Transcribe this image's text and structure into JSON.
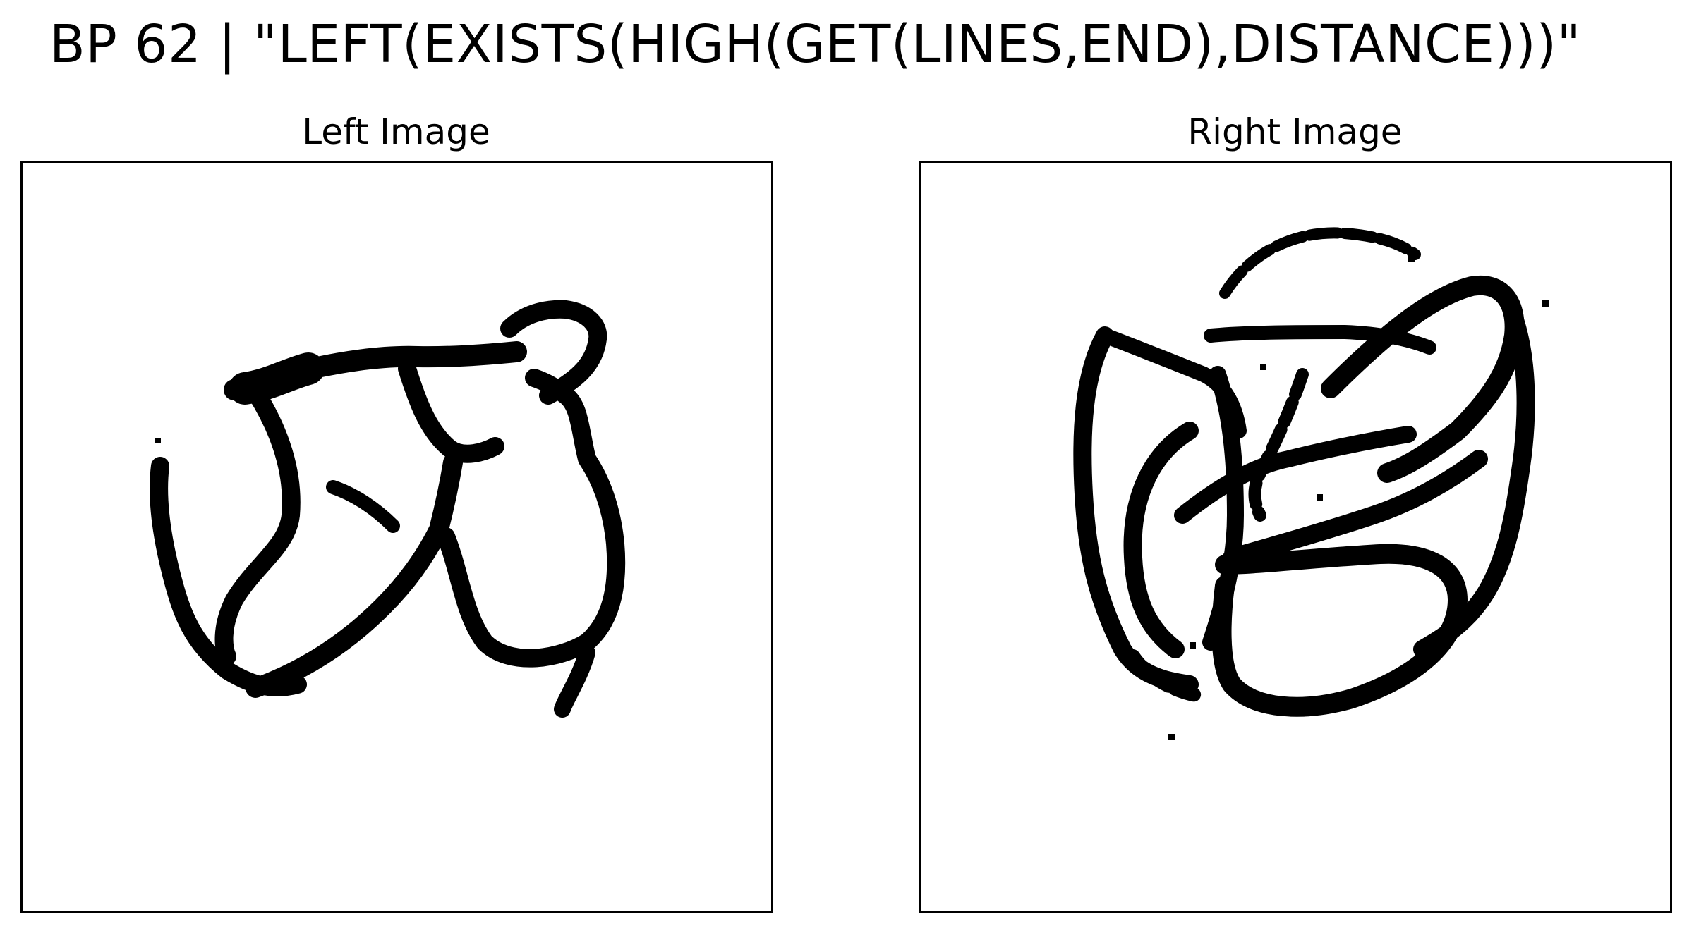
{
  "header": {
    "title": "BP 62 | \"LEFT(EXISTS(HIGH(GET(LINES,END),DISTANCE)))\""
  },
  "panels": {
    "left": {
      "title": "Left Image"
    },
    "right": {
      "title": "Right Image"
    }
  },
  "colors": {
    "ink": "#000000",
    "background": "#ffffff"
  }
}
